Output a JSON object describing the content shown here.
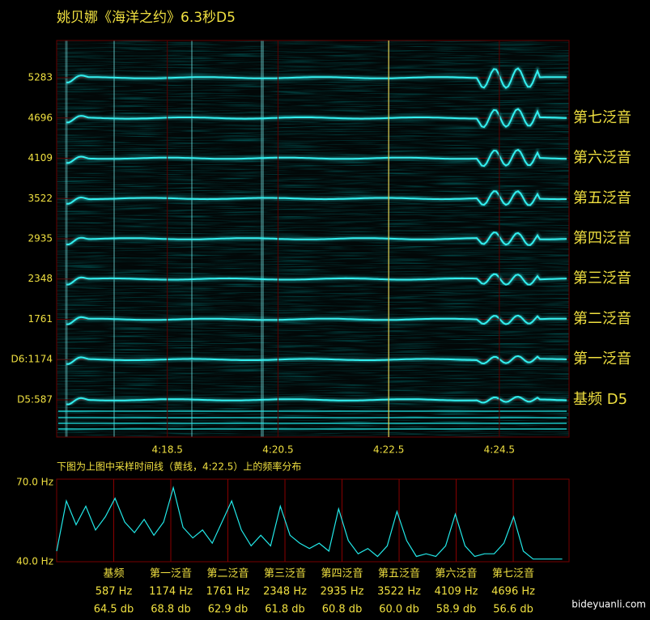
{
  "watermark": "bideyuanli.com",
  "chart_data": [
    {
      "type": "spectrogram",
      "title": "姚贝娜《海洋之约》6.3秒D5",
      "caption": "下图为上图中采样时间线（黄线，4:22.5）上的频率分布",
      "xlim": [
        256.5,
        265.76
      ],
      "xticks": [
        {
          "value": 258.5,
          "label": "4:18.5"
        },
        {
          "value": 260.5,
          "label": "4:20.5"
        },
        {
          "value": 262.5,
          "label": "4:22.5"
        },
        {
          "value": 264.5,
          "label": "4:24.5"
        }
      ],
      "ylim": [
        44,
        5826
      ],
      "yticks": [
        5283,
        4696,
        4109,
        3522,
        2935,
        2348,
        1761,
        {
          "value": 1174,
          "label": "D6:1174"
        },
        {
          "value": 587,
          "label": "D5:587"
        }
      ],
      "cursor": 262.5,
      "cursor_color": "#ffff66",
      "color": "#33f0f0",
      "harmonic_labels": [
        "第七泛音",
        "第六泛音",
        "第五泛音",
        "第四泛音",
        "第三泛音",
        "第二泛音",
        "第一泛音",
        "基频 D5"
      ]
    },
    {
      "type": "line",
      "color": "#22e8e8",
      "x": [
        0,
        100,
        200,
        300,
        400,
        500,
        600,
        700,
        800,
        900,
        1000,
        1100,
        1200,
        1300,
        1400,
        1500,
        1600,
        1700,
        1800,
        1900,
        2000,
        2100,
        2200,
        2300,
        2400,
        2500,
        2600,
        2700,
        2800,
        2900,
        3000,
        3100,
        3200,
        3300,
        3400,
        3500,
        3600,
        3700,
        3800,
        3900,
        4000,
        4100,
        4200,
        4300,
        4400,
        4500,
        4600,
        4700,
        4800,
        4900,
        5000,
        5100,
        5200
      ],
      "values": [
        44,
        63,
        54,
        61,
        52,
        57,
        64,
        55,
        51,
        56,
        50,
        55,
        68,
        53,
        49,
        52,
        47,
        55,
        63,
        52,
        46,
        50,
        46,
        61,
        50,
        47,
        45,
        47,
        44,
        60,
        48,
        43,
        45,
        42,
        46,
        59,
        48,
        42,
        43,
        42,
        46,
        58,
        46,
        42,
        43,
        43,
        47,
        57,
        44,
        41,
        41,
        41,
        41
      ],
      "xlim": [
        0,
        5270
      ],
      "ylim": [
        40,
        70
      ],
      "yticks": [
        {
          "value": 70,
          "label": "70.0 Hz"
        },
        {
          "value": 40,
          "label": "40.0 Hz"
        }
      ],
      "peaks": {
        "names": [
          "基频",
          "第一泛音",
          "第二泛音",
          "第三泛音",
          "第四泛音",
          "第五泛音",
          "第六泛音",
          "第七泛音"
        ],
        "freqs": [
          587,
          1174,
          1761,
          2348,
          2935,
          3522,
          4109,
          4696
        ],
        "freq_labels": [
          "587 Hz",
          "1174 Hz",
          "1761 Hz",
          "2348 Hz",
          "2935 Hz",
          "3522 Hz",
          "4109 Hz",
          "4696 Hz"
        ],
        "values": [
          64.5,
          68.8,
          62.9,
          61.8,
          60.8,
          60.0,
          58.9,
          56.6
        ],
        "value_labels": [
          "64.5 db",
          "68.8 db",
          "62.9 db",
          "61.8 db",
          "60.8 db",
          "60.0 db",
          "58.9 db",
          "56.6 db"
        ]
      }
    }
  ]
}
